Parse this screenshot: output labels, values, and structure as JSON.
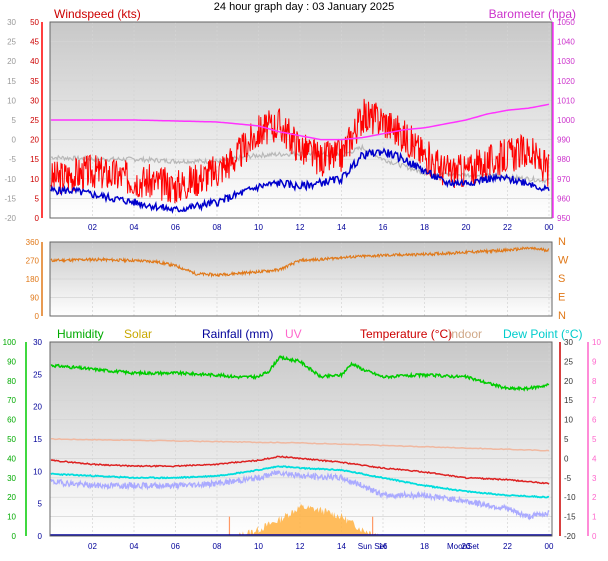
{
  "header": {
    "title": "24 hour graph day : 03 January 2025"
  },
  "chart_data": [
    {
      "type": "line",
      "title": "24 hour graph day : 03 January 2025",
      "left_label": "Windspeed (kts)",
      "right_label": "Barometer (hpa)",
      "x_ticks": [
        "02",
        "04",
        "06",
        "08",
        "10",
        "12",
        "14",
        "16",
        "18",
        "20",
        "22",
        "00"
      ],
      "y_outer_ticks": [
        "30",
        "25",
        "20",
        "15",
        "10",
        "5",
        "0",
        "-5",
        "-10",
        "-15",
        "-20"
      ],
      "y_left_ticks": [
        "50",
        "45",
        "40",
        "35",
        "30",
        "25",
        "20",
        "15",
        "10",
        "5",
        "0"
      ],
      "y_left_range": [
        0,
        50
      ],
      "y_right_ticks": [
        "1050",
        "1040",
        "1030",
        "1020",
        "1010",
        "1000",
        "990",
        "980",
        "970",
        "960",
        "950"
      ],
      "y_right_range": [
        950,
        1050
      ],
      "grid": true,
      "colors": {
        "wind": "#ff0000",
        "avg": "#0000cc",
        "baro": "#ff33ff",
        "temp_bg": "#b8b8b8"
      },
      "series": [
        {
          "key": "baro",
          "x": [
            0,
            2,
            4,
            6,
            8,
            10,
            11,
            12,
            13,
            14,
            15,
            16,
            17,
            18,
            19,
            20,
            21,
            22,
            23,
            24
          ],
          "values": [
            1000,
            1000,
            1000,
            999.5,
            999,
            997,
            994,
            992,
            990,
            990,
            991,
            993,
            995,
            996,
            998,
            1000,
            1003,
            1005,
            1006,
            1008
          ]
        },
        {
          "key": "temp_bg",
          "x": [
            0,
            2,
            4,
            6,
            8,
            10,
            12,
            14,
            15,
            16,
            18,
            20,
            22,
            24
          ],
          "values": [
            -4.5,
            -5,
            -5,
            -5.5,
            -5.5,
            -4,
            -3.5,
            -4,
            -2,
            -5,
            -8.5,
            -9,
            -9.5,
            -10.5
          ]
        },
        {
          "key": "wind",
          "x": [
            0,
            1,
            2,
            3,
            4,
            5,
            6,
            7,
            8,
            9,
            10,
            11,
            12,
            13,
            14,
            15,
            16,
            17,
            18,
            19,
            20,
            21,
            22,
            23,
            24
          ],
          "values": [
            10,
            11,
            12,
            11,
            10,
            9,
            8,
            10,
            12,
            16,
            22,
            24,
            18,
            15,
            16,
            26,
            25,
            21,
            16,
            12,
            12,
            14,
            16,
            17,
            12
          ]
        },
        {
          "key": "avg",
          "x": [
            0,
            1,
            2,
            3,
            4,
            5,
            6,
            7,
            8,
            9,
            10,
            11,
            12,
            13,
            14,
            15,
            16,
            17,
            18,
            19,
            20,
            21,
            22,
            23,
            24
          ],
          "values": [
            7,
            7,
            6,
            5,
            4,
            3,
            2,
            3,
            4,
            6,
            8,
            9,
            8,
            9,
            10,
            16,
            17,
            15,
            12,
            9,
            9,
            10,
            10,
            9,
            7
          ]
        }
      ]
    },
    {
      "type": "line",
      "y_left_ticks": [
        "360",
        "270",
        "180",
        "90",
        "0"
      ],
      "y_left_range": [
        0,
        360
      ],
      "compass_labels": [
        "N",
        "W",
        "S",
        "E",
        "N"
      ],
      "colors": {
        "dir": "#e07818"
      },
      "series": [
        {
          "key": "dir",
          "x": [
            0,
            2,
            4,
            5,
            6,
            7,
            8,
            10,
            11,
            12,
            13,
            14,
            16,
            18,
            20,
            22,
            23,
            24
          ],
          "values": [
            270,
            275,
            270,
            265,
            245,
            205,
            200,
            215,
            225,
            270,
            275,
            285,
            295,
            300,
            310,
            320,
            330,
            320
          ]
        }
      ]
    },
    {
      "type": "line",
      "legend": {
        "humidity": "Humidity",
        "solar": "Solar",
        "rainfall": "Rainfall (mm)",
        "uv": "UV",
        "temperature": "Temperature (°C)",
        "indoor": "Indoor",
        "dewpoint": "Dew Point (°C)"
      },
      "x_ticks": [
        "02",
        "04",
        "06",
        "08",
        "10",
        "12",
        "14",
        "16",
        "18",
        "20",
        "22",
        "00"
      ],
      "astro_labels": {
        "sunset": "Sun Set",
        "moonset": "MoonSet"
      },
      "y_humidity_ticks": [
        "100",
        "90",
        "80",
        "70",
        "60",
        "50",
        "40",
        "30",
        "20",
        "10",
        "0"
      ],
      "y_humidity_range": [
        0,
        100
      ],
      "y_rain_ticks": [
        "30",
        "25",
        "20",
        "15",
        "10",
        "5",
        "0"
      ],
      "y_rain_range": [
        0,
        30
      ],
      "y_temp_ticks": [
        "30",
        "25",
        "20",
        "15",
        "10",
        "5",
        "0",
        "-5",
        "-10",
        "-15",
        "-20"
      ],
      "y_temp_range": [
        -20,
        30
      ],
      "y_uv_ticks": [
        "10",
        "9",
        "8",
        "7",
        "6",
        "5",
        "4",
        "3",
        "2",
        "1",
        "0"
      ],
      "colors": {
        "humidity": "#00cc00",
        "solar": "#d2b000",
        "rainfall": "#000099",
        "uv": "#ff66cc",
        "temperature": "#dd2222",
        "indoor": "#c8a070",
        "dewpoint": "#00dddd",
        "chill": "#aaaaff",
        "indoor_line": "#f0b8a0",
        "solar_fill": "#ffb040"
      },
      "series": [
        {
          "key": "humidity",
          "x": [
            0,
            2,
            4,
            6,
            8,
            9,
            10,
            10.5,
            11,
            12,
            13,
            14,
            14.5,
            15,
            16,
            18,
            20,
            22,
            23,
            24
          ],
          "values": [
            88,
            86,
            84,
            84,
            83,
            82,
            82,
            85,
            92,
            90,
            82,
            83,
            89,
            86,
            82,
            83,
            82,
            76,
            76,
            78
          ]
        },
        {
          "key": "indoor_line",
          "x": [
            0,
            6,
            12,
            18,
            24
          ],
          "values": [
            5,
            4.5,
            4,
            3,
            2
          ]
        },
        {
          "key": "temperature",
          "x": [
            0,
            2,
            4,
            6,
            8,
            10,
            11,
            12,
            14,
            16,
            18,
            20,
            22,
            24
          ],
          "values": [
            -0.5,
            -1.5,
            -2,
            -2,
            -1.5,
            -0.5,
            0.5,
            0,
            -1,
            -2.5,
            -3.5,
            -5,
            -5.5,
            -6.5
          ]
        },
        {
          "key": "dewpoint",
          "x": [
            0,
            2,
            4,
            6,
            8,
            10,
            11,
            12,
            14,
            16,
            18,
            20,
            22,
            24
          ],
          "values": [
            -4,
            -4.5,
            -5,
            -5,
            -4.5,
            -3,
            -2,
            -2.5,
            -3,
            -5,
            -7,
            -8.5,
            -9.5,
            -10
          ]
        },
        {
          "key": "chill",
          "x": [
            0,
            2,
            4,
            6,
            8,
            10,
            11,
            12,
            14,
            15,
            16,
            18,
            20,
            22,
            23,
            24
          ],
          "values": [
            -6,
            -7,
            -7,
            -7,
            -6.5,
            -5,
            -3.5,
            -4.5,
            -5,
            -7,
            -9.5,
            -9.5,
            -11,
            -13,
            -15,
            -14
          ]
        },
        {
          "key": "solar_fill",
          "x": [
            9,
            10,
            11,
            12,
            13,
            14,
            15,
            16
          ],
          "values": [
            0,
            1,
            2.5,
            4.5,
            4,
            3,
            1,
            0
          ]
        }
      ]
    }
  ]
}
